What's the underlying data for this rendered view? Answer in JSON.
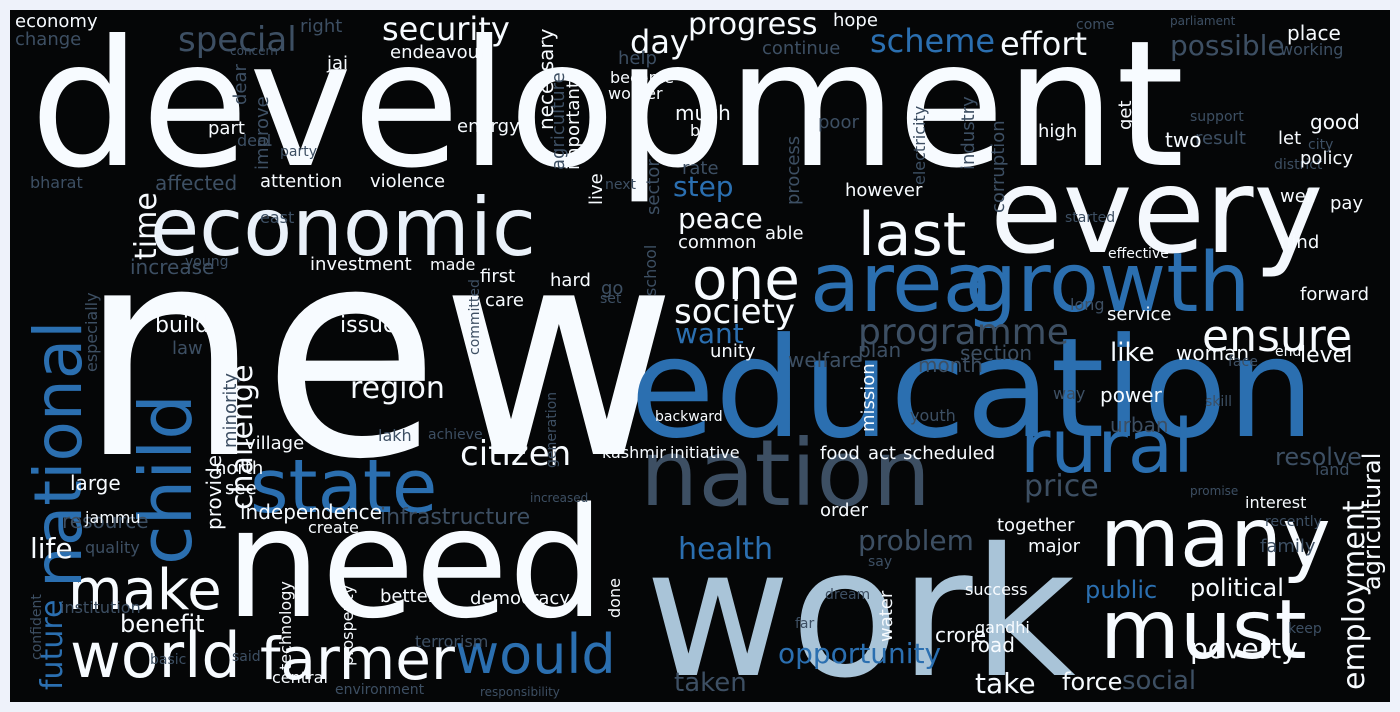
{
  "cloud": {
    "background": "#050607",
    "palette": [
      "#f7fbff",
      "#deebf7",
      "#c6dbef",
      "#9ecae1",
      "#6baed6",
      "#4292c6",
      "#2171b5",
      "#08519c",
      "#3d4f63"
    ],
    "words": [
      {
        "text": "development",
        "color": "#f7fbff"
      },
      {
        "text": "new",
        "color": "#f7fbff"
      },
      {
        "text": "education",
        "color": "#2b6fb0"
      },
      {
        "text": "need",
        "color": "#f7fbff"
      },
      {
        "text": "work",
        "color": "#a9c4d8"
      },
      {
        "text": "every",
        "color": "#f4f8fd"
      },
      {
        "text": "nation",
        "color": "#3d4f63"
      },
      {
        "text": "economic",
        "color": "#eaf1f9"
      },
      {
        "text": "area",
        "color": "#2b6fb0"
      },
      {
        "text": "growth",
        "color": "#2b6fb0"
      },
      {
        "text": "many",
        "color": "#f7fbff"
      },
      {
        "text": "must",
        "color": "#f7fbff"
      },
      {
        "text": "state",
        "color": "#2b6fb0"
      },
      {
        "text": "rural",
        "color": "#2b6fb0"
      },
      {
        "text": "world",
        "color": "#f7fbff"
      },
      {
        "text": "farmer",
        "color": "#f7fbff"
      },
      {
        "text": "would",
        "color": "#2b6fb0"
      },
      {
        "text": "make",
        "color": "#f7fbff"
      },
      {
        "text": "last",
        "color": "#f7fbff"
      },
      {
        "text": "one",
        "color": "#f7fbff"
      },
      {
        "text": "child",
        "color": "#2b6fb0"
      },
      {
        "text": "national",
        "color": "#2b6fb0"
      },
      {
        "text": "ensure",
        "color": "#f7fbff"
      },
      {
        "text": "programme",
        "color": "#3d4f63"
      },
      {
        "text": "society",
        "color": "#f7fbff"
      },
      {
        "text": "citizen",
        "color": "#f7fbff"
      },
      {
        "text": "security",
        "color": "#f7fbff"
      },
      {
        "text": "progress",
        "color": "#f7fbff"
      },
      {
        "text": "special",
        "color": "#3d4f63"
      },
      {
        "text": "scheme",
        "color": "#2b6fb0"
      },
      {
        "text": "effort",
        "color": "#f7fbff"
      },
      {
        "text": "day",
        "color": "#f7fbff"
      },
      {
        "text": "possible",
        "color": "#3d4f63"
      },
      {
        "text": "economy",
        "color": "#f7fbff"
      },
      {
        "text": "region",
        "color": "#f7fbff"
      },
      {
        "text": "challenge",
        "color": "#f7fbff"
      },
      {
        "text": "employment",
        "color": "#f7fbff"
      },
      {
        "text": "infrastructure",
        "color": "#3d4f63"
      },
      {
        "text": "opportunity",
        "color": "#2b6fb0"
      },
      {
        "text": "health",
        "color": "#2b6fb0"
      },
      {
        "text": "problem",
        "color": "#3d4f63"
      },
      {
        "text": "price",
        "color": "#3d4f63"
      },
      {
        "text": "taken",
        "color": "#3d4f63"
      },
      {
        "text": "take",
        "color": "#f7fbff"
      },
      {
        "text": "poverty",
        "color": "#f7fbff"
      },
      {
        "text": "social",
        "color": "#3d4f63"
      },
      {
        "text": "life",
        "color": "#f7fbff"
      },
      {
        "text": "benefit",
        "color": "#f7fbff"
      },
      {
        "text": "future",
        "color": "#2b6fb0"
      },
      {
        "text": "want",
        "color": "#2b6fb0"
      },
      {
        "text": "peace",
        "color": "#f7fbff"
      },
      {
        "text": "step",
        "color": "#2b6fb0"
      },
      {
        "text": "time",
        "color": "#f7fbff"
      },
      {
        "text": "like",
        "color": "#f7fbff"
      },
      {
        "text": "public",
        "color": "#2b6fb0"
      },
      {
        "text": "political",
        "color": "#f7fbff"
      },
      {
        "text": "force",
        "color": "#f7fbff"
      },
      {
        "text": "provide",
        "color": "#f7fbff"
      },
      {
        "text": "independence",
        "color": "#f7fbff"
      },
      {
        "text": "attention",
        "color": "#f7fbff"
      },
      {
        "text": "violence",
        "color": "#f7fbff"
      },
      {
        "text": "affected",
        "color": "#3d4f63"
      },
      {
        "text": "investment",
        "color": "#f7fbff"
      },
      {
        "text": "increase",
        "color": "#3d4f63"
      },
      {
        "text": "build",
        "color": "#f7fbff"
      },
      {
        "text": "issue",
        "color": "#f7fbff"
      },
      {
        "text": "resource",
        "color": "#3d4f63"
      },
      {
        "text": "agricultural",
        "color": "#f7fbff"
      },
      {
        "text": "resolve",
        "color": "#3d4f63"
      },
      {
        "text": "level",
        "color": "#f7fbff"
      },
      {
        "text": "woman",
        "color": "#f7fbff"
      },
      {
        "text": "section",
        "color": "#3d4f63"
      },
      {
        "text": "plan",
        "color": "#3d4f63"
      },
      {
        "text": "welfare",
        "color": "#3d4f63"
      },
      {
        "text": "unity",
        "color": "#f7fbff"
      },
      {
        "text": "service",
        "color": "#f7fbff"
      },
      {
        "text": "forward",
        "color": "#f7fbff"
      },
      {
        "text": "power",
        "color": "#f7fbff"
      },
      {
        "text": "urban",
        "color": "#3d4f63"
      },
      {
        "text": "month",
        "color": "#3d4f63"
      },
      {
        "text": "mission",
        "color": "#f7fbff"
      },
      {
        "text": "scheduled",
        "color": "#f7fbff"
      },
      {
        "text": "act",
        "color": "#f7fbff"
      },
      {
        "text": "food",
        "color": "#f7fbff"
      },
      {
        "text": "initiative",
        "color": "#f7fbff"
      },
      {
        "text": "kashmir",
        "color": "#f7fbff"
      },
      {
        "text": "together",
        "color": "#f7fbff"
      },
      {
        "text": "major",
        "color": "#f7fbff"
      },
      {
        "text": "interest",
        "color": "#f7fbff"
      },
      {
        "text": "family",
        "color": "#3d4f63"
      },
      {
        "text": "order",
        "color": "#f7fbff"
      },
      {
        "text": "water",
        "color": "#f7fbff"
      },
      {
        "text": "crore",
        "color": "#f7fbff"
      },
      {
        "text": "road",
        "color": "#f7fbff"
      },
      {
        "text": "success",
        "color": "#f7fbff"
      },
      {
        "text": "democracy",
        "color": "#f7fbff"
      },
      {
        "text": "better",
        "color": "#f7fbff"
      },
      {
        "text": "done",
        "color": "#f7fbff"
      },
      {
        "text": "central",
        "color": "#f7fbff"
      },
      {
        "text": "environment",
        "color": "#3d4f63"
      },
      {
        "text": "terrorism",
        "color": "#3d4f63"
      },
      {
        "text": "prosperity",
        "color": "#f7fbff"
      },
      {
        "text": "technology",
        "color": "#f7fbff"
      },
      {
        "text": "basic",
        "color": "#3d4f63"
      },
      {
        "text": "institution",
        "color": "#3d4f63"
      },
      {
        "text": "quality",
        "color": "#3d4f63"
      },
      {
        "text": "large",
        "color": "#f7fbff"
      },
      {
        "text": "jammu",
        "color": "#f7fbff"
      },
      {
        "text": "create",
        "color": "#f7fbff"
      },
      {
        "text": "see",
        "color": "#f7fbff"
      },
      {
        "text": "north",
        "color": "#f7fbff"
      },
      {
        "text": "village",
        "color": "#f7fbff"
      },
      {
        "text": "minority",
        "color": "#3d4f63"
      },
      {
        "text": "law",
        "color": "#3d4f63"
      },
      {
        "text": "lakh",
        "color": "#3d4f63"
      },
      {
        "text": "achieve",
        "color": "#3d4f63"
      },
      {
        "text": "youth",
        "color": "#3d4f63"
      },
      {
        "text": "skill",
        "color": "#3d4f63"
      },
      {
        "text": "backward",
        "color": "#f7fbff"
      },
      {
        "text": "way",
        "color": "#3d4f63"
      },
      {
        "text": "face",
        "color": "#3d4f63"
      },
      {
        "text": "end",
        "color": "#f7fbff"
      },
      {
        "text": "land",
        "color": "#3d4f63"
      },
      {
        "text": "recently",
        "color": "#3d4f63"
      },
      {
        "text": "far",
        "color": "#3d4f63"
      },
      {
        "text": "gandhi",
        "color": "#f7fbff"
      },
      {
        "text": "dream",
        "color": "#3d4f63"
      },
      {
        "text": "say",
        "color": "#3d4f63"
      },
      {
        "text": "said",
        "color": "#3d4f63"
      },
      {
        "text": "responsibility",
        "color": "#3d4f63"
      },
      {
        "text": "keep",
        "color": "#3d4f63"
      },
      {
        "text": "confident",
        "color": "#3d4f63"
      },
      {
        "text": "committed",
        "color": "#3d4f63"
      },
      {
        "text": "especially",
        "color": "#3d4f63"
      },
      {
        "text": "increased",
        "color": "#3d4f63"
      },
      {
        "text": "generation",
        "color": "#3d4f63"
      },
      {
        "text": "promise",
        "color": "#3d4f63"
      },
      {
        "text": "first",
        "color": "#f7fbff"
      },
      {
        "text": "made",
        "color": "#f7fbff"
      },
      {
        "text": "care",
        "color": "#f7fbff"
      },
      {
        "text": "hard",
        "color": "#f7fbff"
      },
      {
        "text": "go",
        "color": "#3d4f63"
      },
      {
        "text": "school",
        "color": "#3d4f63"
      },
      {
        "text": "set",
        "color": "#3d4f63"
      },
      {
        "text": "young",
        "color": "#3d4f63"
      },
      {
        "text": "long",
        "color": "#3d4f63"
      },
      {
        "text": "common",
        "color": "#f7fbff"
      },
      {
        "text": "able",
        "color": "#f7fbff"
      },
      {
        "text": "however",
        "color": "#f7fbff"
      },
      {
        "text": "rate",
        "color": "#3d4f63"
      },
      {
        "text": "process",
        "color": "#3d4f63"
      },
      {
        "text": "sector",
        "color": "#3d4f63"
      },
      {
        "text": "live",
        "color": "#f7fbff"
      },
      {
        "text": "next",
        "color": "#3d4f63"
      },
      {
        "text": "hind",
        "color": "#f7fbff"
      },
      {
        "text": "well",
        "color": "#f7fbff"
      },
      {
        "text": "pay",
        "color": "#f7fbff"
      },
      {
        "text": "effective",
        "color": "#f7fbff"
      },
      {
        "text": "started",
        "color": "#3d4f63"
      },
      {
        "text": "district",
        "color": "#3d4f63"
      },
      {
        "text": "high",
        "color": "#f7fbff"
      },
      {
        "text": "corruption",
        "color": "#3d4f63"
      },
      {
        "text": "industry",
        "color": "#3d4f63"
      },
      {
        "text": "electricity",
        "color": "#3d4f63"
      },
      {
        "text": "poor",
        "color": "#3d4f63"
      },
      {
        "text": "east",
        "color": "#3d4f63"
      },
      {
        "text": "bharat",
        "color": "#3d4f63"
      },
      {
        "text": "party",
        "color": "#3d4f63"
      },
      {
        "text": "deal",
        "color": "#3d4f63"
      },
      {
        "text": "improve",
        "color": "#3d4f63"
      },
      {
        "text": "energy",
        "color": "#f7fbff"
      },
      {
        "text": "agriculture",
        "color": "#3d4f63"
      },
      {
        "text": "important",
        "color": "#f7fbff"
      },
      {
        "text": "necessary",
        "color": "#f7fbff"
      },
      {
        "text": "part",
        "color": "#f7fbff"
      },
      {
        "text": "dear",
        "color": "#3d4f63"
      },
      {
        "text": "jai",
        "color": "#f7fbff"
      },
      {
        "text": "concern",
        "color": "#3d4f63"
      },
      {
        "text": "change",
        "color": "#3d4f63"
      },
      {
        "text": "right",
        "color": "#3d4f63"
      },
      {
        "text": "endeavour",
        "color": "#f7fbff"
      },
      {
        "text": "help",
        "color": "#3d4f63"
      },
      {
        "text": "become",
        "color": "#f7fbff"
      },
      {
        "text": "worker",
        "color": "#f7fbff"
      },
      {
        "text": "much",
        "color": "#f7fbff"
      },
      {
        "text": "bill",
        "color": "#f7fbff"
      },
      {
        "text": "hope",
        "color": "#f7fbff"
      },
      {
        "text": "continue",
        "color": "#3d4f63"
      },
      {
        "text": "come",
        "color": "#3d4f63"
      },
      {
        "text": "parliament",
        "color": "#3d4f63"
      },
      {
        "text": "place",
        "color": "#f7fbff"
      },
      {
        "text": "working",
        "color": "#3d4f63"
      },
      {
        "text": "good",
        "color": "#f7fbff"
      },
      {
        "text": "city",
        "color": "#3d4f63"
      },
      {
        "text": "let",
        "color": "#f7fbff"
      },
      {
        "text": "policy",
        "color": "#f7fbff"
      },
      {
        "text": "support",
        "color": "#3d4f63"
      },
      {
        "text": "get",
        "color": "#f7fbff"
      },
      {
        "text": "result",
        "color": "#3d4f63"
      },
      {
        "text": "two",
        "color": "#f7fbff"
      }
    ]
  }
}
